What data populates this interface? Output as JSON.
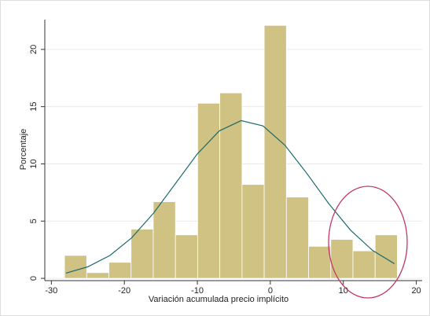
{
  "chart_data": {
    "type": "histogram",
    "xlabel": "Variación acumulada precio implícito",
    "ylabel": "Porcentaje",
    "bins": [
      -28.2,
      -25.16,
      -22.12,
      -19.08,
      -16.04,
      -13.0,
      -9.96,
      -6.92,
      -3.88,
      -0.84,
      2.2,
      5.24,
      8.28,
      11.32,
      14.36,
      17.4
    ],
    "values": [
      2.0,
      0.5,
      1.4,
      4.3,
      6.7,
      3.8,
      15.3,
      16.2,
      8.2,
      22.1,
      7.1,
      2.8,
      3.4,
      2.4,
      3.8
    ],
    "color": "#cfc283",
    "curve": {
      "color": "#1d6b6b",
      "x": [
        -28,
        -25,
        -22,
        -19,
        -16,
        -13,
        -10,
        -7,
        -4,
        -1,
        2,
        5,
        8,
        11,
        14,
        17
      ],
      "values": [
        0.46,
        1.01,
        1.99,
        3.54,
        5.7,
        8.28,
        10.87,
        12.88,
        13.78,
        13.32,
        11.63,
        9.17,
        6.53,
        4.2,
        2.44,
        1.28
      ]
    },
    "xlim": [
      -30.9,
      20.8
    ],
    "ylim": [
      -0.2,
      22.6
    ],
    "xticks": [
      -30,
      -20,
      -10,
      0,
      10,
      20
    ],
    "yticks": [
      0,
      5,
      10,
      15,
      20
    ],
    "grid": true
  }
}
